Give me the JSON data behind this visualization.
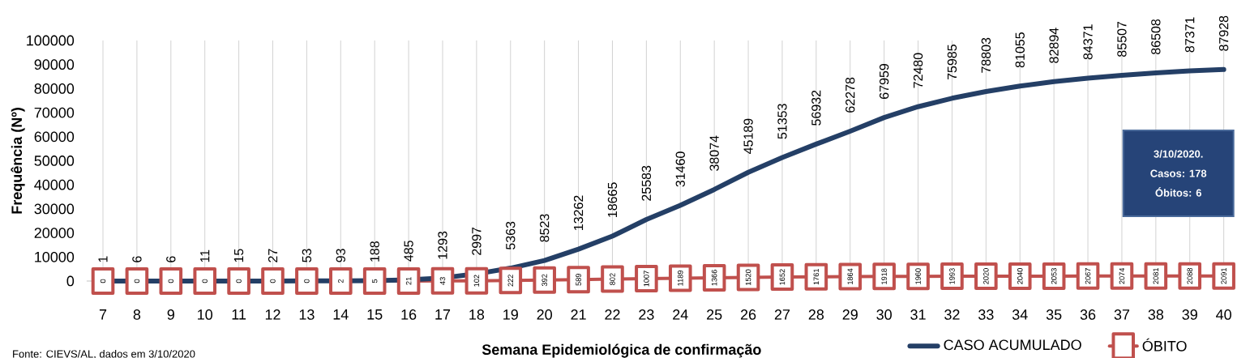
{
  "chart_data": {
    "type": "line",
    "xlabel": "Semana Epidemiológica de confirmação",
    "ylabel": "Frequência (Nº)",
    "categories": [
      "7",
      "8",
      "9",
      "10",
      "11",
      "12",
      "13",
      "14",
      "15",
      "16",
      "17",
      "18",
      "19",
      "20",
      "21",
      "22",
      "23",
      "24",
      "25",
      "26",
      "27",
      "28",
      "29",
      "30",
      "31",
      "32",
      "33",
      "34",
      "35",
      "36",
      "37",
      "38",
      "39",
      "40"
    ],
    "series": [
      {
        "name": "CASO ACUMULADO",
        "color": "#243f66",
        "marker": "none",
        "values": [
          1,
          6,
          6,
          11,
          15,
          27,
          53,
          93,
          188,
          485,
          1293,
          2997,
          5363,
          8523,
          13262,
          18665,
          25583,
          31460,
          38074,
          45189,
          51353,
          56932,
          62278,
          67959,
          72480,
          75985,
          78803,
          81055,
          82894,
          84371,
          85507,
          86508,
          87371,
          87928
        ]
      },
      {
        "name": "ÓBITO",
        "color": "#c0504d",
        "marker": "square",
        "values": [
          0,
          0,
          0,
          0,
          0,
          0,
          0,
          2,
          5,
          21,
          43,
          102,
          222,
          392,
          589,
          802,
          1007,
          1189,
          1366,
          1520,
          1652,
          1761,
          1864,
          1918,
          1960,
          1993,
          2020,
          2040,
          2053,
          2067,
          2074,
          2081,
          2088,
          2091
        ]
      }
    ],
    "ylim": [
      0,
      100000
    ],
    "yticks": [
      0,
      10000,
      20000,
      30000,
      40000,
      50000,
      60000,
      70000,
      80000,
      90000,
      100000
    ],
    "grid": "x",
    "legend": "bottom",
    "data_labels": true,
    "annotations": [
      "3/10/2020.",
      "Casos: 178",
      "Óbitos: 6",
      "Fonte: CIEVS/AL, dados em 3/10/2020"
    ]
  }
}
